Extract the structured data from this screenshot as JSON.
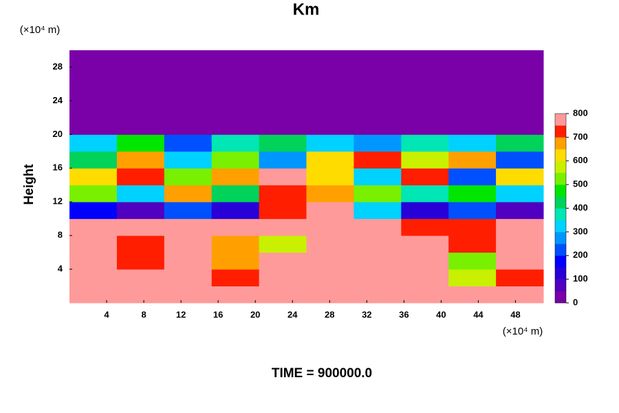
{
  "chart_data": {
    "type": "heatmap",
    "title": "Km",
    "xlabel_unit": "(×10⁴ m)",
    "ylabel_unit": "(×10⁴ m)",
    "ylabel": "Height",
    "footer": "TIME = 900000.0",
    "xlim": [
      0,
      51
    ],
    "ylim": [
      0,
      30
    ],
    "xticks": [
      4,
      8,
      12,
      16,
      20,
      24,
      28,
      32,
      36,
      40,
      44,
      48
    ],
    "yticks": [
      4,
      8,
      12,
      16,
      20,
      24,
      28
    ],
    "x": [
      2.55,
      7.65,
      12.75,
      17.85,
      22.95,
      28.05,
      33.15,
      38.25,
      43.35,
      48.45
    ],
    "y": [
      1,
      3,
      5,
      7,
      9,
      11,
      13,
      15,
      17,
      19,
      21,
      23,
      25,
      27,
      29
    ],
    "z": [
      [
        800,
        780,
        800,
        800,
        800,
        800,
        800,
        800,
        760,
        800
      ],
      [
        800,
        760,
        800,
        720,
        800,
        800,
        800,
        780,
        560,
        740
      ],
      [
        780,
        700,
        780,
        650,
        800,
        800,
        780,
        760,
        500,
        800
      ],
      [
        760,
        720,
        800,
        680,
        560,
        800,
        760,
        800,
        700,
        800
      ],
      [
        800,
        800,
        800,
        800,
        800,
        800,
        800,
        700,
        720,
        800
      ],
      [
        150,
        50,
        200,
        100,
        700,
        800,
        300,
        100,
        200,
        50
      ],
      [
        500,
        300,
        650,
        400,
        700,
        650,
        500,
        350,
        450,
        300
      ],
      [
        600,
        700,
        500,
        650,
        750,
        600,
        300,
        700,
        200,
        600
      ],
      [
        400,
        650,
        300,
        500,
        250,
        600,
        700,
        550,
        650,
        200
      ],
      [
        300,
        450,
        200,
        350,
        400,
        300,
        250,
        350,
        300,
        400
      ],
      [
        0,
        0,
        0,
        0,
        0,
        0,
        0,
        0,
        0,
        0
      ],
      [
        0,
        0,
        0,
        0,
        0,
        0,
        0,
        0,
        0,
        0
      ],
      [
        0,
        0,
        0,
        0,
        0,
        0,
        0,
        0,
        0,
        0
      ],
      [
        0,
        0,
        0,
        0,
        0,
        0,
        0,
        0,
        0,
        0
      ],
      [
        0,
        0,
        0,
        0,
        0,
        0,
        0,
        0,
        0,
        0
      ]
    ],
    "clim": [
      0,
      800
    ],
    "cticks": [
      0,
      100,
      200,
      300,
      400,
      500,
      600,
      700,
      800
    ],
    "colors": [
      "#7a00a8",
      "#5000c0",
      "#2800d8",
      "#0000ff",
      "#0050ff",
      "#0096ff",
      "#00d2ff",
      "#00e6b4",
      "#00d25a",
      "#00e600",
      "#78f000",
      "#c8f000",
      "#ffdc00",
      "#ffa000",
      "#ff1e00",
      "#ff9a9a"
    ]
  }
}
